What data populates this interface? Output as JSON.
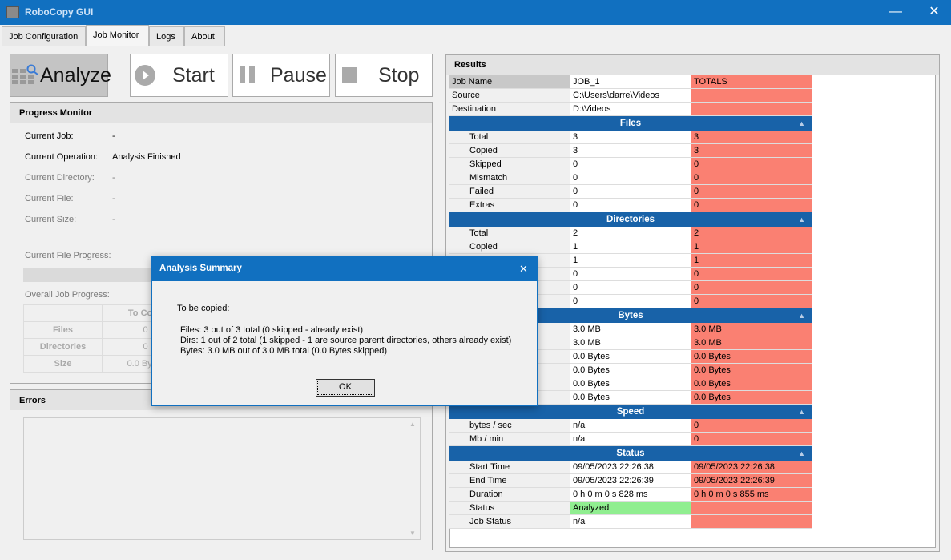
{
  "window": {
    "title": "RoboCopy GUI",
    "minimize": "—",
    "close": "✕"
  },
  "tabs": [
    {
      "label": "Job Configuration"
    },
    {
      "label": "Job Monitor",
      "active": true
    },
    {
      "label": "Logs"
    },
    {
      "label": "About"
    }
  ],
  "toolbar": {
    "analyze": "Analyze",
    "start": "Start",
    "pause": "Pause",
    "stop": "Stop"
  },
  "progress": {
    "title": "Progress Monitor",
    "fields": [
      {
        "label": "Current Job:",
        "value": "-"
      },
      {
        "label": "Current Operation:",
        "value": "Analysis Finished"
      },
      {
        "label": "Current Directory:",
        "value": "-"
      },
      {
        "label": "Current File:",
        "value": "-"
      },
      {
        "label": "Current Size:",
        "value": "-"
      }
    ],
    "file_progress_label": "Current File Progress:",
    "job_progress_label": "Overall Job Progress:",
    "table": {
      "header": "To Copy",
      "rows": [
        {
          "label": "Files",
          "value": "0"
        },
        {
          "label": "Directories",
          "value": "0"
        },
        {
          "label": "Size",
          "value": "0.0 Bytes"
        }
      ]
    }
  },
  "errors": {
    "title": "Errors"
  },
  "results": {
    "title": "Results",
    "top": [
      {
        "label": "Job Name",
        "value": "JOB_1",
        "total": "TOTALS"
      },
      {
        "label": "Source",
        "value": "C:\\Users\\darre\\Videos",
        "total": ""
      },
      {
        "label": "Destination",
        "value": "D:\\Videos",
        "total": ""
      }
    ],
    "sections": [
      {
        "title": "Files",
        "rows": [
          {
            "label": "Total",
            "value": "3",
            "total": "3"
          },
          {
            "label": "Copied",
            "value": "3",
            "total": "3"
          },
          {
            "label": "Skipped",
            "value": "0",
            "total": "0"
          },
          {
            "label": "Mismatch",
            "value": "0",
            "total": "0"
          },
          {
            "label": "Failed",
            "value": "0",
            "total": "0"
          },
          {
            "label": "Extras",
            "value": "0",
            "total": "0"
          }
        ]
      },
      {
        "title": "Directories",
        "rows": [
          {
            "label": "Total",
            "value": "2",
            "total": "2"
          },
          {
            "label": "Copied",
            "value": "1",
            "total": "1"
          },
          {
            "label": "",
            "value": "1",
            "total": "1"
          },
          {
            "label": "",
            "value": "0",
            "total": "0"
          },
          {
            "label": "",
            "value": "0",
            "total": "0"
          },
          {
            "label": "",
            "value": "0",
            "total": "0"
          }
        ]
      },
      {
        "title": "Bytes",
        "rows": [
          {
            "label": "",
            "value": "3.0 MB",
            "total": "3.0 MB"
          },
          {
            "label": "",
            "value": "3.0 MB",
            "total": "3.0 MB"
          },
          {
            "label": "",
            "value": "0.0 Bytes",
            "total": "0.0 Bytes"
          },
          {
            "label": "",
            "value": "0.0 Bytes",
            "total": "0.0 Bytes"
          },
          {
            "label": "",
            "value": "0.0 Bytes",
            "total": "0.0 Bytes"
          },
          {
            "label": "",
            "value": "0.0 Bytes",
            "total": "0.0 Bytes"
          }
        ]
      },
      {
        "title": "Speed",
        "rows": [
          {
            "label": "bytes / sec",
            "value": "n/a",
            "total": "0"
          },
          {
            "label": "Mb / min",
            "value": "n/a",
            "total": "0"
          }
        ]
      },
      {
        "title": "Status",
        "rows": [
          {
            "label": "Start Time",
            "value": "09/05/2023 22:26:38",
            "total": "09/05/2023 22:26:38"
          },
          {
            "label": "End Time",
            "value": "09/05/2023 22:26:39",
            "total": "09/05/2023 22:26:39"
          },
          {
            "label": "Duration",
            "value": "0 h 0 m 0 s 828 ms",
            "total": "0 h 0 m 0 s 855 ms"
          },
          {
            "label": "Status",
            "value": "Analyzed",
            "total": "",
            "status": "ok"
          },
          {
            "label": "Job Status",
            "value": "n/a",
            "total": ""
          }
        ]
      }
    ]
  },
  "dialog": {
    "title": "Analysis Summary",
    "close": "✕",
    "heading": "To be copied:",
    "lines": [
      "Files: 3 out of 3 total (0 skipped - already exist)",
      "Dirs: 1 out of 2 total (1 skipped - 1 are source parent directories, others already exist)",
      "Bytes: 3.0 MB out of 3.0 MB total (0.0 Bytes skipped)"
    ],
    "ok": "OK"
  },
  "colors": {
    "accent": "#1170c0",
    "section": "#1862a8",
    "totals": "#fa8072",
    "status_ok": "#90ee90"
  }
}
